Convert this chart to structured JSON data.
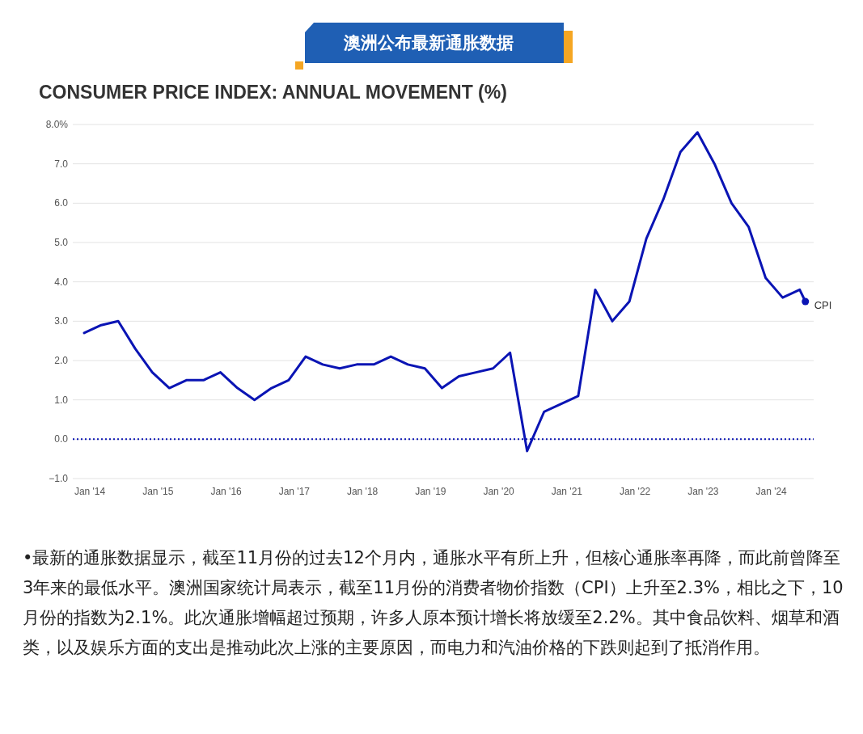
{
  "chart_data": {
    "type": "line",
    "title": "澳洲公布最新通胀数据",
    "subtitle": "CONSUMER PRICE INDEX: ANNUAL MOVEMENT (%)",
    "x": [
      "2013-12",
      "2014-03",
      "2014-06",
      "2014-09",
      "2014-12",
      "2015-03",
      "2015-06",
      "2015-09",
      "2015-12",
      "2016-03",
      "2016-06",
      "2016-09",
      "2016-12",
      "2017-03",
      "2017-06",
      "2017-09",
      "2017-12",
      "2018-03",
      "2018-06",
      "2018-09",
      "2018-12",
      "2019-03",
      "2019-06",
      "2019-09",
      "2019-12",
      "2020-03",
      "2020-06",
      "2020-09",
      "2020-12",
      "2021-03",
      "2021-06",
      "2021-09",
      "2021-12",
      "2022-03",
      "2022-06",
      "2022-09",
      "2022-12",
      "2023-03",
      "2023-06",
      "2023-09",
      "2023-12",
      "2024-03",
      "2024-06",
      "2024-07"
    ],
    "series": [
      {
        "name": "CPI",
        "color": "#0a14b4",
        "values": [
          2.7,
          2.9,
          3.0,
          2.3,
          1.7,
          1.3,
          1.5,
          1.5,
          1.7,
          1.3,
          1.0,
          1.3,
          1.5,
          2.1,
          1.9,
          1.8,
          1.9,
          1.9,
          2.1,
          1.9,
          1.8,
          1.3,
          1.6,
          1.7,
          1.8,
          2.2,
          -0.3,
          0.7,
          0.9,
          1.1,
          3.8,
          3.0,
          3.5,
          5.1,
          6.1,
          7.3,
          7.8,
          7.0,
          6.0,
          5.4,
          4.1,
          3.6,
          3.8,
          3.5
        ]
      }
    ],
    "xlim": [
      "2013-10",
      "2024-08-15"
    ],
    "xticks": [
      {
        "value": "2014-01",
        "label": "Jan '14"
      },
      {
        "value": "2015-01",
        "label": "Jan '15"
      },
      {
        "value": "2016-01",
        "label": "Jan '16"
      },
      {
        "value": "2017-01",
        "label": "Jan '17"
      },
      {
        "value": "2018-01",
        "label": "Jan '18"
      },
      {
        "value": "2019-01",
        "label": "Jan '19"
      },
      {
        "value": "2020-01",
        "label": "Jan '20"
      },
      {
        "value": "2021-01",
        "label": "Jan '21"
      },
      {
        "value": "2022-01",
        "label": "Jan '22"
      },
      {
        "value": "2023-01",
        "label": "Jan '23"
      },
      {
        "value": "2024-01",
        "label": "Jan '24"
      }
    ],
    "ylim": [
      -1,
      8
    ],
    "yticks": [
      {
        "value": 8,
        "label": "8.0%"
      },
      {
        "value": 7,
        "label": "7.0"
      },
      {
        "value": 6,
        "label": "6.0"
      },
      {
        "value": 5,
        "label": "5.0"
      },
      {
        "value": 4,
        "label": "4.0"
      },
      {
        "value": 3,
        "label": "3.0"
      },
      {
        "value": 2,
        "label": "2.0"
      },
      {
        "value": 1,
        "label": "1.0"
      },
      {
        "value": 0,
        "label": "0.0"
      },
      {
        "value": -1,
        "label": "−1.0"
      }
    ],
    "grid": "y",
    "marker": "none",
    "line_style": "solid",
    "ref_lines": [
      {
        "axis": "y",
        "value": 0,
        "color": "#0a14b4",
        "line_style": "dotted"
      }
    ],
    "annotations": [
      "•最新的通胀数据显示，截至11月份的过去12个月内，通胀水平有所上升，但核心通胀率再降，而此前曾降至3年来的最低水平。澳洲国家统计局表示，截至11月份的消费者物价指数（CPI）上升至2.3%，相比之下，10月份的指数为2.1%。此次通胀增幅超过预期，许多人原本预计增长将放缓至2.2%。其中食品饮料、烟草和酒类，以及娱乐方面的支出是推动此次上涨的主要原因，而电力和汽油价格的下跌则起到了抵消作用。"
    ]
  }
}
